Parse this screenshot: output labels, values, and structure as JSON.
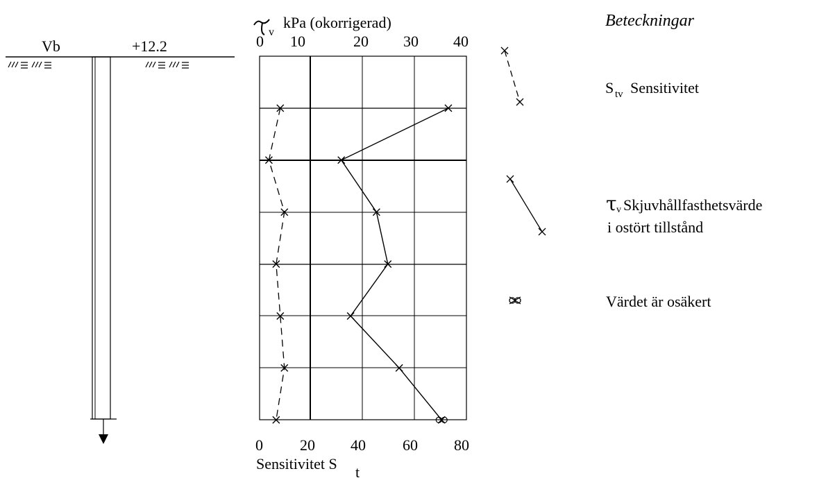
{
  "borehole": {
    "id_label": "Vb",
    "elevation_label": "+12.2"
  },
  "chart_data": {
    "type": "line",
    "top_axis": {
      "symbol": "τ",
      "subscript": "v",
      "unit_label": "kPa (okorrigerad)",
      "ticks": [
        "0",
        "10",
        "20",
        "30",
        "40"
      ],
      "range": [
        0,
        40
      ]
    },
    "bottom_axis": {
      "label": "Sensitivitet S",
      "label_sub": "t",
      "ticks": [
        "0",
        "20",
        "40",
        "60",
        "80"
      ],
      "range": [
        0,
        80
      ]
    },
    "depth_levels": 6,
    "grid": true,
    "series": [
      {
        "key": "tau_v",
        "style": "solid",
        "values": [
          {
            "level": 1,
            "x": 36.5
          },
          {
            "level": 2,
            "x": 15.8
          },
          {
            "level": 3,
            "x": 22.6
          },
          {
            "level": 4,
            "x": 24.8
          },
          {
            "level": 5,
            "x": 17.6
          },
          {
            "level": 6,
            "x": 27.0
          },
          {
            "level": 7,
            "x": 35.2,
            "uncertain": true
          }
        ]
      },
      {
        "key": "sensitivity",
        "style": "dashed",
        "values": [
          {
            "level": 1,
            "x": 4.0
          },
          {
            "level": 2,
            "x": 1.8
          },
          {
            "level": 3,
            "x": 4.8
          },
          {
            "level": 4,
            "x": 3.2
          },
          {
            "level": 5,
            "x": 4.0
          },
          {
            "level": 6,
            "x": 4.8
          },
          {
            "level": 7,
            "x": 3.2
          }
        ]
      }
    ]
  },
  "legend": {
    "title": "Beteckningar",
    "sensitivity": {
      "symbol": "S",
      "subscript": "tv",
      "text": "Sensitivitet"
    },
    "shear": {
      "symbol": "τ",
      "subscript": "v",
      "line1": "Skjuvhållfasthetsvärde",
      "line2": "i ostört tillstånd"
    },
    "uncertain": {
      "text": "Värdet är osäkert"
    }
  }
}
